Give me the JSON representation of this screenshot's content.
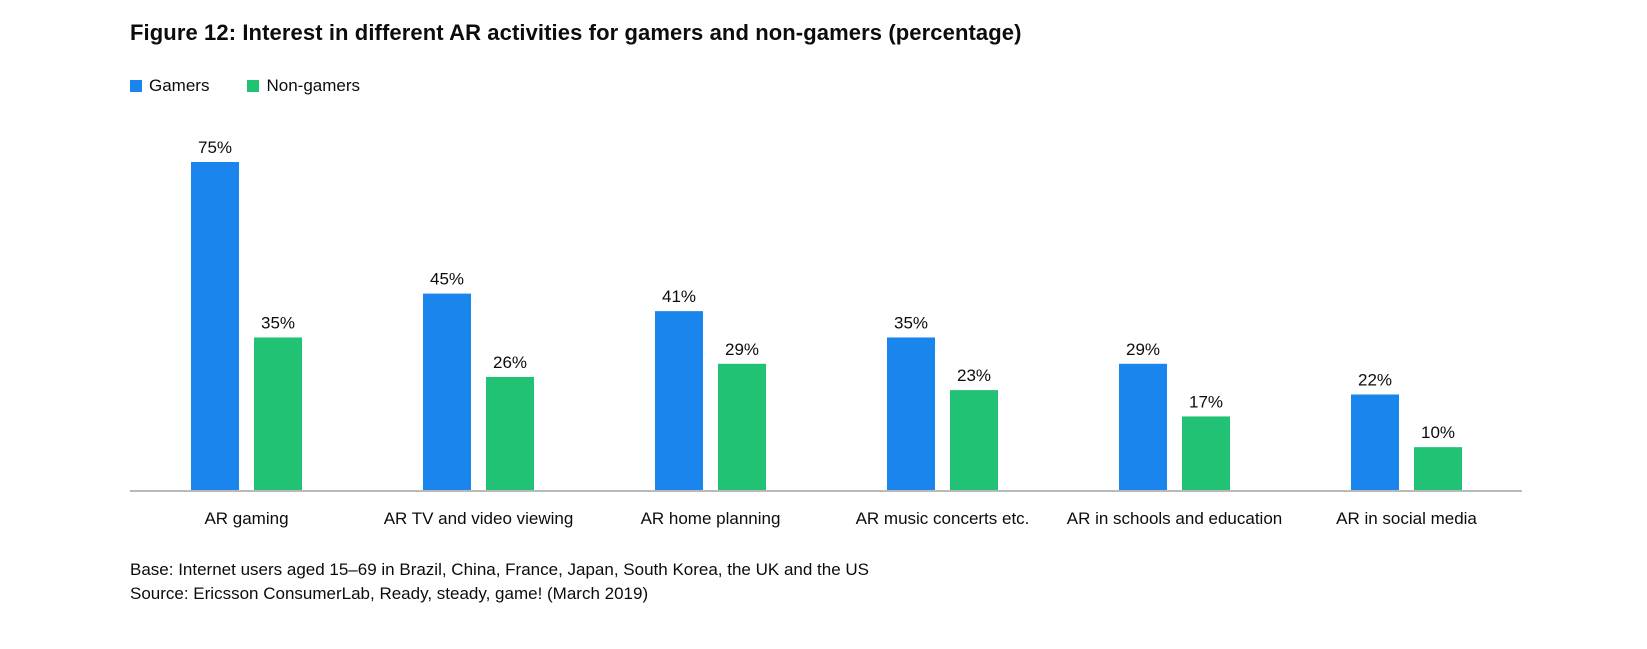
{
  "title": "Figure 12: Interest in different AR activities for gamers and non-gamers (percentage)",
  "legend": {
    "items": [
      {
        "label": "Gamers",
        "color": "#1a85ec"
      },
      {
        "label": "Non-gamers",
        "color": "#22c275"
      }
    ]
  },
  "notes": {
    "base": "Base: Internet users aged 15–69 in Brazil, China, France, Japan, South Korea, the UK and the US",
    "source": "Source: Ericsson ConsumerLab, Ready, steady, game! (March 2019)"
  },
  "chart_data": {
    "type": "bar",
    "title": "Figure 12: Interest in different AR activities for gamers and non-gamers (percentage)",
    "categories": [
      "AR gaming",
      "AR TV and video viewing",
      "AR home planning",
      "AR music concerts etc.",
      "AR in schools and education",
      "AR in social media"
    ],
    "series": [
      {
        "name": "Gamers",
        "color": "#1a85ec",
        "values": [
          75,
          45,
          41,
          35,
          29,
          22
        ]
      },
      {
        "name": "Non-gamers",
        "color": "#22c275",
        "values": [
          35,
          26,
          29,
          23,
          17,
          10
        ]
      }
    ],
    "value_suffix": "%",
    "ylim": [
      0,
      75
    ],
    "grid": false,
    "legend_position": "top-left",
    "xlabel": "",
    "ylabel": ""
  }
}
